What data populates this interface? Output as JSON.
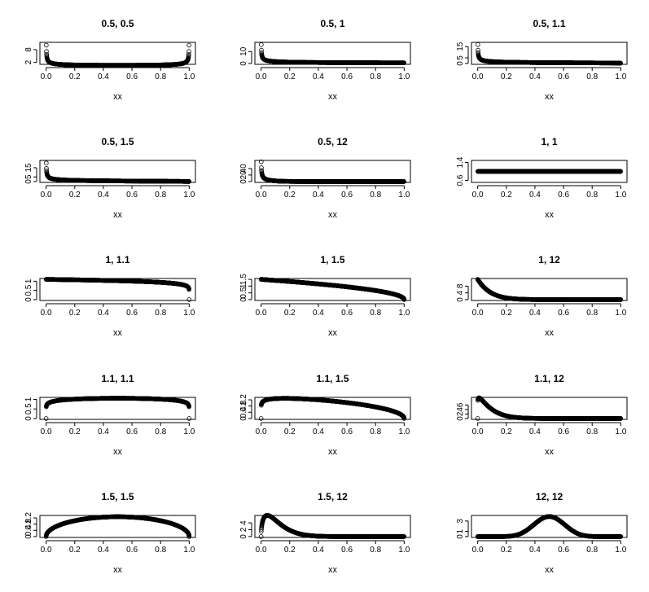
{
  "chart_data": [
    {
      "type": "scatter",
      "title": "0.5, 0.5",
      "alpha": 0.5,
      "beta": 0.5,
      "xlabel": "xx",
      "ylabel": "",
      "xlim": [
        0,
        1
      ],
      "ylim": [
        1.5,
        11
      ],
      "xticks": [
        0.0,
        0.2,
        0.4,
        0.6,
        0.8,
        1.0
      ],
      "yticks": [
        2,
        8
      ],
      "x_grid": "xx = i/1000 for i = 1..999",
      "series": [
        {
          "function": "beta density"
        }
      ]
    },
    {
      "type": "scatter",
      "title": "0.5, 1",
      "alpha": 0.5,
      "beta": 1,
      "xlabel": "xx",
      "ylabel": "",
      "xlim": [
        0,
        1
      ],
      "ylim": [
        0,
        17
      ],
      "xticks": [
        0.0,
        0.2,
        0.4,
        0.6,
        0.8,
        1.0
      ],
      "yticks": [
        0,
        10
      ],
      "x_grid": "xx = i/1000 for i = 1..999",
      "series": [
        {
          "function": "beta density"
        }
      ]
    },
    {
      "type": "scatter",
      "title": "0.5, 1.1",
      "alpha": 0.5,
      "beta": 1.1,
      "xlabel": "xx",
      "ylabel": "",
      "xlim": [
        0,
        1
      ],
      "ylim": [
        0,
        18
      ],
      "xticks": [
        0.0,
        0.2,
        0.4,
        0.6,
        0.8,
        1.0
      ],
      "yticks": [
        0,
        5,
        15
      ],
      "x_grid": "xx = i/1000 for i = 1..999",
      "series": [
        {
          "function": "beta density"
        }
      ]
    },
    {
      "type": "scatter",
      "title": "0.5, 1.5",
      "alpha": 0.5,
      "beta": 1.5,
      "xlabel": "xx",
      "ylabel": "",
      "xlim": [
        0,
        1
      ],
      "ylim": [
        0,
        22
      ],
      "xticks": [
        0.0,
        0.2,
        0.4,
        0.6,
        0.8,
        1.0
      ],
      "yticks": [
        0,
        5,
        15
      ],
      "x_grid": "xx = i/1000 for i = 1..999",
      "series": [
        {
          "function": "beta density"
        }
      ]
    },
    {
      "type": "scatter",
      "title": "0.5, 12",
      "alpha": 0.5,
      "beta": 12,
      "xlabel": "xx",
      "ylabel": "",
      "xlim": [
        0,
        1
      ],
      "ylim": [
        0,
        62
      ],
      "xticks": [
        0.0,
        0.2,
        0.4,
        0.6,
        0.8,
        1.0
      ],
      "yticks": [
        0,
        20,
        40
      ],
      "x_grid": "xx = i/1000 for i = 1..999",
      "series": [
        {
          "function": "beta density"
        }
      ]
    },
    {
      "type": "scatter",
      "title": "1, 1",
      "alpha": 1,
      "beta": 1,
      "xlabel": "xx",
      "ylabel": "",
      "xlim": [
        0,
        1
      ],
      "ylim": [
        0.55,
        1.45
      ],
      "xticks": [
        0.0,
        0.2,
        0.4,
        0.6,
        0.8,
        1.0
      ],
      "yticks": [
        0.6,
        1.4
      ],
      "x_grid": "xx = i/1000 for i = 1..999",
      "series": [
        {
          "function": "beta density"
        }
      ]
    },
    {
      "type": "scatter",
      "title": "1, 1.1",
      "alpha": 1,
      "beta": 1.1,
      "xlabel": "xx",
      "ylabel": "",
      "xlim": [
        0,
        1
      ],
      "ylim": [
        0,
        1.1
      ],
      "xticks": [
        0.0,
        0.2,
        0.4,
        0.6,
        0.8,
        1.0
      ],
      "yticks": [
        0.0,
        0.5,
        1.0
      ],
      "x_grid": "xx = i/1000 for i = 0..1000",
      "series": [
        {
          "function": "beta density"
        }
      ]
    },
    {
      "type": "scatter",
      "title": "1, 1.5",
      "alpha": 1,
      "beta": 1.5,
      "xlabel": "xx",
      "ylabel": "",
      "xlim": [
        0,
        1
      ],
      "ylim": [
        0,
        1.5
      ],
      "xticks": [
        0.0,
        0.2,
        0.4,
        0.6,
        0.8,
        1.0
      ],
      "yticks": [
        0.0,
        0.5,
        1.0,
        1.5
      ],
      "x_grid": "xx = i/1000 for i = 0..1000",
      "series": [
        {
          "function": "beta density"
        }
      ]
    },
    {
      "type": "scatter",
      "title": "1, 12",
      "alpha": 1,
      "beta": 12,
      "xlabel": "xx",
      "ylabel": "",
      "xlim": [
        0,
        1
      ],
      "ylim": [
        0,
        12
      ],
      "xticks": [
        0.0,
        0.2,
        0.4,
        0.6,
        0.8,
        1.0
      ],
      "yticks": [
        0,
        4,
        8
      ],
      "x_grid": "xx = i/1000 for i = 0..1000",
      "series": [
        {
          "function": "beta density"
        }
      ]
    },
    {
      "type": "scatter",
      "title": "1.1, 1.1",
      "alpha": 1.1,
      "beta": 1.1,
      "xlabel": "xx",
      "ylabel": "",
      "xlim": [
        0,
        1
      ],
      "ylim": [
        0,
        1.06
      ],
      "xticks": [
        0.0,
        0.2,
        0.4,
        0.6,
        0.8,
        1.0
      ],
      "yticks": [
        0.0,
        0.5,
        1.0
      ],
      "x_grid": "xx = i/1000 for i = 0..1000",
      "series": [
        {
          "function": "beta density"
        }
      ]
    },
    {
      "type": "scatter",
      "title": "1.1, 1.5",
      "alpha": 1.1,
      "beta": 1.5,
      "xlabel": "xx",
      "ylabel": "",
      "xlim": [
        0,
        1
      ],
      "ylim": [
        0,
        1.3
      ],
      "xticks": [
        0.0,
        0.2,
        0.4,
        0.6,
        0.8,
        1.0
      ],
      "yticks": [
        0.0,
        0.4,
        0.8,
        1.2
      ],
      "x_grid": "xx = i/1000 for i = 0..1000",
      "series": [
        {
          "function": "beta density"
        }
      ]
    },
    {
      "type": "scatter",
      "title": "1.1, 12",
      "alpha": 1.1,
      "beta": 12,
      "xlabel": "xx",
      "ylabel": "",
      "xlim": [
        0,
        1
      ],
      "ylim": [
        0,
        9
      ],
      "xticks": [
        0.0,
        0.2,
        0.4,
        0.6,
        0.8,
        1.0
      ],
      "yticks": [
        0,
        2,
        4,
        6
      ],
      "x_grid": "xx = i/1000 for i = 0..1000",
      "series": [
        {
          "function": "beta density"
        }
      ]
    },
    {
      "type": "scatter",
      "title": "1.5, 1.5",
      "alpha": 1.5,
      "beta": 1.5,
      "xlabel": "xx",
      "ylabel": "",
      "xlim": [
        0,
        1
      ],
      "ylim": [
        0,
        1.3
      ],
      "xticks": [
        0.0,
        0.2,
        0.4,
        0.6,
        0.8,
        1.0
      ],
      "yticks": [
        0.0,
        0.4,
        0.8,
        1.2
      ],
      "x_grid": "xx = i/1000 for i = 0..1000",
      "series": [
        {
          "function": "beta density"
        }
      ]
    },
    {
      "type": "scatter",
      "title": "1.5, 12",
      "alpha": 1.5,
      "beta": 12,
      "xlabel": "xx",
      "ylabel": "",
      "xlim": [
        0,
        1
      ],
      "ylim": [
        0,
        5.9
      ],
      "xticks": [
        0.0,
        0.2,
        0.4,
        0.6,
        0.8,
        1.0
      ],
      "yticks": [
        0,
        2,
        4
      ],
      "x_grid": "xx = i/1000 for i = 0..1000",
      "series": [
        {
          "function": "beta density"
        }
      ]
    },
    {
      "type": "scatter",
      "title": "12, 12",
      "alpha": 12,
      "beta": 12,
      "xlabel": "xx",
      "ylabel": "",
      "xlim": [
        0,
        1
      ],
      "ylim": [
        0,
        3.9
      ],
      "xticks": [
        0.0,
        0.2,
        0.4,
        0.6,
        0.8,
        1.0
      ],
      "yticks": [
        0,
        1,
        3
      ],
      "x_grid": "xx = i/1000 for i = 0..1000",
      "series": [
        {
          "function": "beta density"
        }
      ]
    }
  ],
  "colors": {
    "points": "#000000",
    "frame": "#000000",
    "background": "#ffffff"
  },
  "grid": false,
  "legend": "none"
}
